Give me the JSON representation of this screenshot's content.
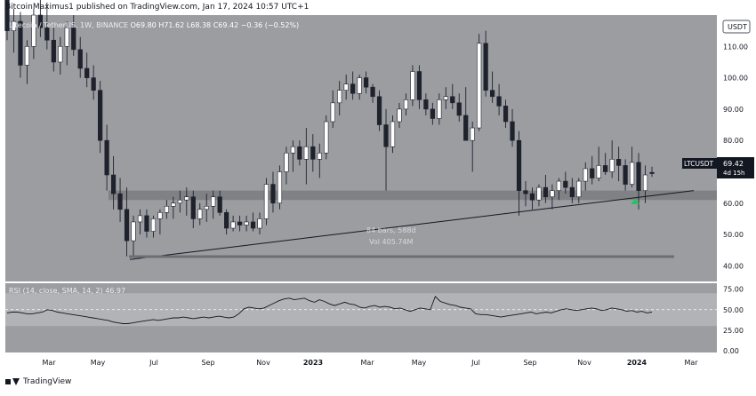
{
  "header": {
    "published": "BitcoinMaximus1 published on TradingView.com, Jan 17, 2024 10:57 UTC+1"
  },
  "footer": {
    "brand": "TradingView"
  },
  "legend": {
    "symbol": "Litecoin / TetherUS, 1W, BINANCE",
    "o": "O69.80",
    "h": "H71.62",
    "l": "L68.38",
    "c": "C69.42",
    "chg": "−0.36 (−0.52%)"
  },
  "rsi_legend": {
    "text": "RSI (14, close, SMA, 14, 2)",
    "value": "46.97"
  },
  "price_scale": {
    "currency": "USDT"
  },
  "price_tag": {
    "symbol": "LTCUSDT",
    "price": "69.42",
    "countdown": "4d 15h"
  },
  "measure": {
    "bars": "84 bars, 588d",
    "vol": "Vol 405.74M"
  },
  "colors": {
    "panel": "#9b9da1",
    "rsi_band": "#b1b3b6",
    "axis_text": "#131722",
    "up_body": "#ffffff",
    "down_body": "#1e222d",
    "marker": "#22c55e",
    "tag_bg": "#131722"
  },
  "chart_data": [
    {
      "type": "candlestick",
      "title": "Litecoin / TetherUS, 1W, BINANCE",
      "x_ticks": [
        "Mar",
        "May",
        "Jul",
        "Sep",
        "Nov",
        "2023",
        "Mar",
        "May",
        "Jul",
        "Sep",
        "Nov",
        "2024",
        "Mar"
      ],
      "y_ticks": [
        "110.00",
        "100.00",
        "90.00",
        "80.00",
        "70.00",
        "60.00",
        "50.00",
        "40.00"
      ],
      "ylim": [
        35,
        120
      ],
      "ohlc": [
        [
          130,
          138,
          112,
          115
        ],
        [
          115,
          122,
          108,
          118
        ],
        [
          118,
          121,
          100,
          104
        ],
        [
          104,
          112,
          98,
          110
        ],
        [
          110,
          122,
          106,
          120
        ],
        [
          120,
          128,
          113,
          116
        ],
        [
          116,
          124,
          109,
          112
        ],
        [
          112,
          116,
          102,
          105
        ],
        [
          105,
          113,
          101,
          110
        ],
        [
          110,
          118,
          104,
          116
        ],
        [
          116,
          120,
          107,
          109
        ],
        [
          109,
          113,
          100,
          103
        ],
        [
          103,
          108,
          97,
          100
        ],
        [
          100,
          104,
          93,
          96
        ],
        [
          96,
          99,
          76,
          80
        ],
        [
          80,
          85,
          64,
          69
        ],
        [
          69,
          75,
          58,
          63
        ],
        [
          63,
          68,
          54,
          58
        ],
        [
          58,
          65,
          43,
          48
        ],
        [
          48,
          56,
          43,
          54
        ],
        [
          54,
          58,
          50,
          56
        ],
        [
          56,
          58,
          49,
          51
        ],
        [
          51,
          56,
          49,
          55
        ],
        [
          55,
          58,
          50,
          57
        ],
        [
          57,
          61,
          55,
          59
        ],
        [
          59,
          62,
          55,
          60
        ],
        [
          60,
          64,
          57,
          61
        ],
        [
          61,
          65,
          56,
          62
        ],
        [
          62,
          64,
          52,
          55
        ],
        [
          55,
          60,
          53,
          58
        ],
        [
          58,
          63,
          54,
          59
        ],
        [
          59,
          64,
          55,
          62
        ],
        [
          62,
          64,
          56,
          57
        ],
        [
          57,
          58,
          50,
          52
        ],
        [
          52,
          56,
          51,
          54
        ],
        [
          54,
          56,
          51,
          53
        ],
        [
          53,
          56,
          51,
          54
        ],
        [
          54,
          57,
          51,
          52
        ],
        [
          52,
          57,
          50,
          55
        ],
        [
          55,
          68,
          53,
          66
        ],
        [
          66,
          70,
          57,
          60
        ],
        [
          60,
          72,
          58,
          70
        ],
        [
          70,
          78,
          66,
          76
        ],
        [
          76,
          80,
          70,
          78
        ],
        [
          78,
          80,
          72,
          74
        ],
        [
          74,
          84,
          66,
          78
        ],
        [
          78,
          82,
          70,
          74
        ],
        [
          74,
          79,
          68,
          76
        ],
        [
          76,
          88,
          74,
          86
        ],
        [
          86,
          96,
          84,
          92
        ],
        [
          92,
          99,
          88,
          96
        ],
        [
          96,
          101,
          93,
          98
        ],
        [
          98,
          102,
          93,
          95
        ],
        [
          95,
          101,
          93,
          100
        ],
        [
          100,
          102,
          95,
          97
        ],
        [
          97,
          98,
          92,
          94
        ],
        [
          94,
          96,
          83,
          85
        ],
        [
          85,
          90,
          64,
          78
        ],
        [
          78,
          88,
          76,
          86
        ],
        [
          86,
          92,
          84,
          90
        ],
        [
          90,
          95,
          88,
          93
        ],
        [
          93,
          104,
          91,
          102
        ],
        [
          102,
          104,
          90,
          93
        ],
        [
          93,
          95,
          88,
          90
        ],
        [
          90,
          92,
          85,
          87
        ],
        [
          87,
          95,
          85,
          93
        ],
        [
          93,
          97,
          90,
          94
        ],
        [
          94,
          98,
          90,
          92
        ],
        [
          92,
          95,
          86,
          88
        ],
        [
          88,
          97,
          80,
          80
        ],
        [
          80,
          86,
          70,
          84
        ],
        [
          84,
          114,
          83,
          111
        ],
        [
          111,
          115,
          94,
          96
        ],
        [
          96,
          102,
          92,
          94
        ],
        [
          94,
          98,
          88,
          91
        ],
        [
          91,
          93,
          84,
          86
        ],
        [
          86,
          90,
          78,
          80
        ],
        [
          80,
          83,
          56,
          64
        ],
        [
          64,
          67,
          59,
          63
        ],
        [
          63,
          65,
          58,
          61
        ],
        [
          61,
          66,
          59,
          65
        ],
        [
          65,
          69,
          60,
          62
        ],
        [
          62,
          66,
          58,
          64
        ],
        [
          64,
          68,
          61,
          67
        ],
        [
          67,
          70,
          63,
          65
        ],
        [
          65,
          68,
          60,
          62
        ],
        [
          62,
          68,
          60,
          67
        ],
        [
          67,
          73,
          64,
          71
        ],
        [
          71,
          75,
          66,
          68
        ],
        [
          68,
          78,
          67,
          72
        ],
        [
          72,
          76,
          69,
          70
        ],
        [
          70,
          80,
          68,
          74
        ],
        [
          74,
          78,
          67,
          72
        ],
        [
          72,
          74,
          64,
          66
        ],
        [
          66,
          78,
          65,
          73
        ],
        [
          73,
          76,
          58,
          64
        ],
        [
          64,
          72,
          60,
          69
        ],
        [
          69.8,
          71.62,
          68.38,
          69.42
        ]
      ],
      "support_zone": [
        61,
        64
      ],
      "trendline": [
        42,
        64
      ],
      "annotations": [
        "green up-arrow below the last low",
        "long-term ascending support line"
      ]
    },
    {
      "type": "line",
      "title": "RSI (14, close, SMA, 14, 2)",
      "y_ticks": [
        "75.00",
        "50.00",
        "25.00",
        "0.00"
      ],
      "ylim": [
        0,
        80
      ],
      "band": [
        30,
        70
      ],
      "midline": 50,
      "values": [
        46,
        47,
        47,
        46,
        45,
        45,
        46,
        47,
        50,
        49,
        47,
        46,
        45,
        44,
        43,
        42,
        41,
        40,
        39,
        38,
        37,
        35,
        34,
        33,
        33,
        34,
        35,
        36,
        37,
        38,
        37,
        38,
        39,
        40,
        40,
        41,
        40,
        39,
        40,
        41,
        40,
        41,
        42,
        41,
        40,
        41,
        45,
        51,
        53,
        52,
        51,
        52,
        55,
        58,
        61,
        63,
        64,
        62,
        63,
        64,
        61,
        59,
        62,
        60,
        57,
        55,
        57,
        59,
        57,
        56,
        53,
        52,
        54,
        55,
        53,
        54,
        53,
        51,
        52,
        50,
        48,
        50,
        52,
        51,
        50,
        66,
        60,
        58,
        56,
        55,
        53,
        52,
        51,
        45,
        44,
        44,
        43,
        42,
        41,
        42,
        43,
        44,
        45,
        46,
        47,
        45,
        46,
        47,
        46,
        48,
        50,
        51,
        50,
        49,
        50,
        51,
        52,
        51,
        49,
        50,
        52,
        51,
        50,
        48,
        49,
        47,
        48,
        46,
        47
      ]
    }
  ]
}
